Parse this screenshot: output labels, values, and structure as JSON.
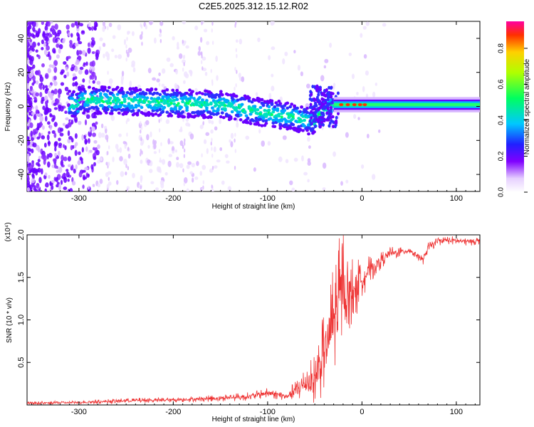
{
  "title": "C2E5.2025.312.15.12.R02",
  "chart_data": [
    {
      "type": "heatmap",
      "title": "C2E5.2025.312.15.12.R02",
      "xlabel": "Height of straight line (km)",
      "ylabel": "Frequency (Hz)",
      "xlim": [
        -355,
        125
      ],
      "ylim": [
        -50,
        50
      ],
      "xticks": [
        -300,
        -200,
        -100,
        0,
        100
      ],
      "yticks": [
        -40,
        -20,
        0,
        20,
        40
      ],
      "colorbar": {
        "label": "Normalized spectral amplitude",
        "range": [
          0.0,
          0.95
        ],
        "ticks": [
          "0.0",
          "0.2",
          "0.4",
          "0.6",
          "0.8"
        ],
        "tick_values": [
          0.0,
          0.2,
          0.4,
          0.6,
          0.8
        ]
      },
      "signal_track": {
        "x": [
          -300,
          -250,
          -200,
          -150,
          -100,
          -75,
          -50,
          -40,
          -30,
          -20,
          0,
          50,
          125
        ],
        "freq_hz": [
          4,
          3,
          2,
          1,
          -4,
          -6,
          -9,
          -2,
          1,
          1,
          1,
          1,
          1
        ]
      }
    },
    {
      "type": "line",
      "xlabel": "Height of straight line (km)",
      "ylabel": "SNR (10 * v/v)",
      "scale_label": "(x10⁴)",
      "xlim": [
        -355,
        125
      ],
      "ylim": [
        0,
        2.0
      ],
      "xticks": [
        -300,
        -200,
        -100,
        0,
        100
      ],
      "yticks": [
        0.5,
        1.0,
        1.5,
        2.0
      ],
      "ytick_labels": [
        "0.5",
        "1.0",
        "1.5",
        "2.0"
      ],
      "series": [
        {
          "name": "SNR",
          "color": "#ee3333",
          "x": [
            -355,
            -300,
            -250,
            -200,
            -150,
            -120,
            -100,
            -80,
            -60,
            -50,
            -40,
            -30,
            -25,
            -20,
            -15,
            -10,
            -5,
            0,
            10,
            20,
            30,
            40,
            50,
            60,
            65,
            70,
            80,
            90,
            100,
            110,
            125
          ],
          "y": [
            0.02,
            0.03,
            0.05,
            0.06,
            0.08,
            0.1,
            0.14,
            0.1,
            0.25,
            0.3,
            0.6,
            1.0,
            1.2,
            1.4,
            1.3,
            1.35,
            1.4,
            1.5,
            1.6,
            1.7,
            1.78,
            1.8,
            1.82,
            1.75,
            1.7,
            1.85,
            1.92,
            1.94,
            1.93,
            1.92,
            1.93
          ],
          "spread": [
            0.02,
            0.02,
            0.03,
            0.03,
            0.04,
            0.05,
            0.06,
            0.05,
            0.2,
            0.3,
            0.5,
            0.7,
            0.75,
            0.7,
            0.45,
            0.4,
            0.35,
            0.25,
            0.15,
            0.1,
            0.08,
            0.06,
            0.05,
            0.05,
            0.05,
            0.06,
            0.05,
            0.05,
            0.05,
            0.05,
            0.05
          ]
        }
      ]
    }
  ]
}
